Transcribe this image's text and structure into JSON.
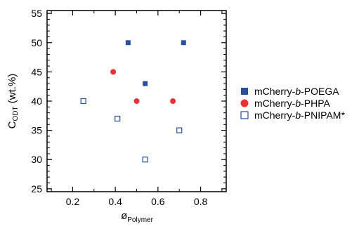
{
  "chart_data": {
    "type": "scatter",
    "xlabel": {
      "main": "ø",
      "sub": "Polymer"
    },
    "ylabel": {
      "main": "C",
      "sub": "ODT",
      "unit": " (wt.%)"
    },
    "xlim": [
      0.08,
      0.92
    ],
    "ylim": [
      24.5,
      55.5
    ],
    "xticks": [
      0.2,
      0.4,
      0.6,
      0.8
    ],
    "yticks": [
      25,
      30,
      35,
      40,
      45,
      50,
      55
    ],
    "grid": false,
    "legend_position": "right",
    "series": [
      {
        "name": {
          "pre": "mCherry-",
          "ital": "b",
          "post": "-POEGA"
        },
        "marker": "square-filled",
        "color": "#2a4f9c",
        "points": [
          [
            0.46,
            50
          ],
          [
            0.72,
            50
          ],
          [
            0.54,
            43
          ]
        ]
      },
      {
        "name": {
          "pre": "mCherry-",
          "ital": "b",
          "post": "-PHPA"
        },
        "marker": "circle-filled",
        "color": "#e8323a",
        "points": [
          [
            0.39,
            45
          ],
          [
            0.5,
            40
          ],
          [
            0.67,
            40
          ]
        ]
      },
      {
        "name": {
          "pre": "mCherry-",
          "ital": "b",
          "post": "-PNIPAM*"
        },
        "marker": "square-open",
        "color": "#2a4f9c",
        "points": [
          [
            0.25,
            40
          ],
          [
            0.41,
            37
          ],
          [
            0.7,
            35
          ],
          [
            0.54,
            30
          ]
        ]
      }
    ]
  }
}
